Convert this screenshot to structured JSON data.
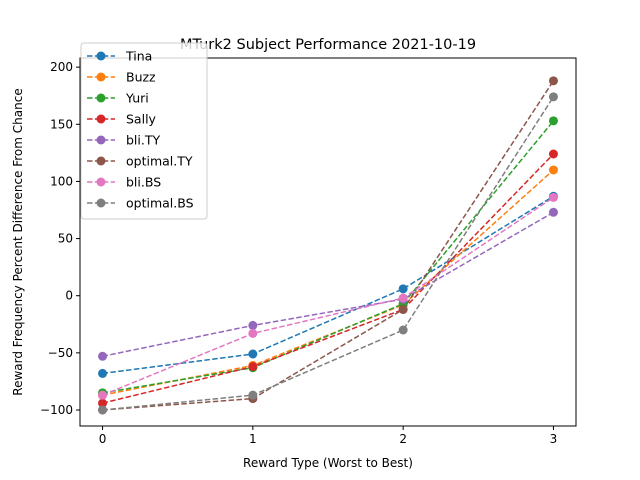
{
  "chart_data": {
    "type": "line",
    "title": "MTurk2 Subject Performance 2021-10-19",
    "xlabel": "Reward Type (Worst to Best)",
    "ylabel": "Reward Frequency Percent Difference From Chance",
    "x": [
      0,
      1,
      2,
      3
    ],
    "xticks": [
      "0",
      "1",
      "2",
      "3"
    ],
    "yticks": [
      "−100",
      "−50",
      "0",
      "50",
      "100",
      "150",
      "200"
    ],
    "xlim": [
      -0.15,
      3.15
    ],
    "ylim": [
      -114,
      208
    ],
    "grid": false,
    "legend_position": "top-left",
    "line_style": "dashed",
    "marker": "circle",
    "series": [
      {
        "name": "Tina",
        "color": "#1f77b4",
        "values": [
          -68,
          -51,
          6,
          87
        ]
      },
      {
        "name": "Buzz",
        "color": "#ff7f0e",
        "values": [
          -87,
          -61,
          -8,
          110
        ]
      },
      {
        "name": "Yuri",
        "color": "#2ca02c",
        "values": [
          -85,
          -63,
          -7,
          153
        ]
      },
      {
        "name": "Sally",
        "color": "#d62728",
        "values": [
          -94,
          -62,
          -12,
          124
        ]
      },
      {
        "name": "bli.TY",
        "color": "#9467bd",
        "values": [
          -53,
          -26,
          -3,
          73
        ]
      },
      {
        "name": "optimal.TY",
        "color": "#8c564b",
        "values": [
          -100,
          -90,
          -12,
          188
        ]
      },
      {
        "name": "bli.BS",
        "color": "#e377c2",
        "values": [
          -87,
          -33,
          -2,
          86
        ]
      },
      {
        "name": "optimal.BS",
        "color": "#7f7f7f",
        "values": [
          -100,
          -87,
          -30,
          174
        ]
      }
    ]
  }
}
